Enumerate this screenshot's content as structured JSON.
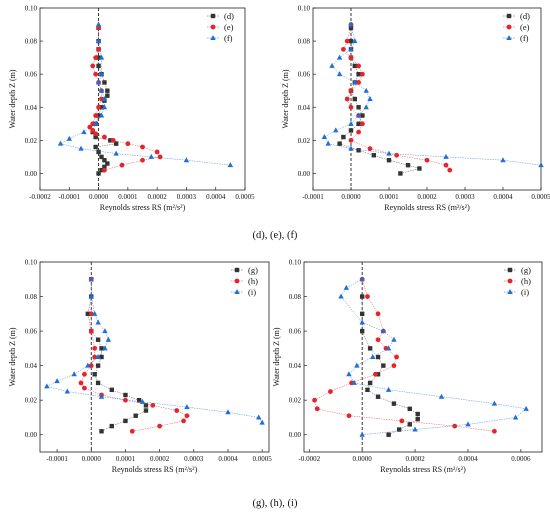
{
  "captions": [
    "(d), (e), (f)",
    "(g), (h), (i)"
  ],
  "series_colors": {
    "square": "#333333",
    "circle": "#e8242b",
    "triangle": "#1f6fd6"
  },
  "chart_data": [
    {
      "type": "scatter",
      "xlabel": "Reynolds stress RS (m²/s²)",
      "ylabel": "Water depth Z (m)",
      "xlim": [
        -0.0002,
        0.0005
      ],
      "ylim": [
        -0.01,
        0.1
      ],
      "xticks": [
        "-0.0002",
        "-0.0001",
        "0.0000",
        "0.0001",
        "0.0002",
        "0.0003",
        "0.0004",
        "0.0005"
      ],
      "yticks": [
        "0.00",
        "0.02",
        "0.04",
        "0.06",
        "0.08",
        "0.10"
      ],
      "legend_position": "top-right",
      "series": [
        {
          "name": "(d)",
          "marker": "square",
          "x": [
            0.0,
            1e-05,
            2e-05,
            3e-05,
            2e-05,
            1e-05,
            0.0,
            -1e-05,
            6e-05,
            4e-05,
            -1e-05,
            -2e-05,
            -1e-05,
            0.0,
            1e-05,
            2e-05,
            3e-05,
            3e-05,
            2e-05,
            1e-05,
            0.0,
            0.0,
            0.0,
            0.0,
            0.0
          ],
          "y": [
            0.0,
            0.002,
            0.004,
            0.006,
            0.008,
            0.01,
            0.013,
            0.016,
            0.018,
            0.02,
            0.022,
            0.025,
            0.03,
            0.035,
            0.04,
            0.044,
            0.047,
            0.05,
            0.055,
            0.06,
            0.065,
            0.07,
            0.075,
            0.08,
            0.088
          ]
        },
        {
          "name": "(e)",
          "marker": "circle",
          "x": [
            2e-05,
            8e-05,
            0.00015,
            0.00021,
            0.0002,
            0.00015,
            0.0001,
            5e-05,
            2e-05,
            -1e-05,
            -2e-05,
            -3e-05,
            -2e-05,
            -1e-05,
            0.0,
            1e-05,
            1e-05,
            0.0,
            -1e-05,
            -2e-05,
            -1e-05,
            0.0,
            0.0
          ],
          "y": [
            0.002,
            0.005,
            0.008,
            0.01,
            0.013,
            0.016,
            0.018,
            0.02,
            0.022,
            0.024,
            0.026,
            0.028,
            0.03,
            0.035,
            0.04,
            0.045,
            0.05,
            0.055,
            0.06,
            0.065,
            0.07,
            0.075,
            0.088
          ]
        },
        {
          "name": "(f)",
          "marker": "triangle",
          "x": [
            0.00045,
            0.0003,
            0.00018,
            6e-05,
            -6e-05,
            -0.00013,
            -0.0001,
            -5e-05,
            -1e-05,
            1e-05,
            2e-05,
            2e-05,
            1e-05,
            0.0,
            1e-05,
            1e-05,
            0.0,
            0.0
          ],
          "y": [
            0.005,
            0.008,
            0.01,
            0.012,
            0.015,
            0.018,
            0.021,
            0.025,
            0.03,
            0.035,
            0.04,
            0.045,
            0.05,
            0.055,
            0.06,
            0.07,
            0.08,
            0.09
          ]
        }
      ]
    },
    {
      "type": "scatter",
      "xlabel": "Reynolds stress RS (m²/s²)",
      "ylabel": "Water depth Z (m)",
      "xlim": [
        -0.0001,
        0.0005
      ],
      "ylim": [
        -0.01,
        0.1
      ],
      "xticks": [
        "-0.0001",
        "0.0000",
        "0.0001",
        "0.0002",
        "0.0003",
        "0.0004",
        "0.0005"
      ],
      "yticks": [
        "0.00",
        "0.02",
        "0.04",
        "0.06",
        "0.08",
        "0.10"
      ],
      "legend_position": "top-right",
      "series": [
        {
          "name": "(d)",
          "marker": "square",
          "x": [
            0.00013,
            0.00018,
            0.00015,
            0.0001,
            6e-05,
            2e-05,
            -3e-05,
            -2e-05,
            0.0,
            2e-05,
            3e-05,
            2e-05,
            1e-05,
            0.0,
            1e-05,
            2e-05,
            1e-05,
            0.0,
            0.0,
            0.0,
            0.0
          ],
          "y": [
            0.0,
            0.003,
            0.005,
            0.008,
            0.011,
            0.014,
            0.018,
            0.022,
            0.026,
            0.03,
            0.035,
            0.04,
            0.045,
            0.05,
            0.055,
            0.06,
            0.065,
            0.07,
            0.075,
            0.08,
            0.088
          ]
        },
        {
          "name": "(e)",
          "marker": "circle",
          "x": [
            0.00026,
            0.00025,
            0.0002,
            0.00012,
            5e-05,
            0.0,
            2e-05,
            3e-05,
            2e-05,
            0.0,
            -1e-05,
            0.0,
            2e-05,
            3e-05,
            2e-05,
            0.0,
            -2e-05,
            -1e-05,
            0.0
          ],
          "y": [
            0.002,
            0.005,
            0.008,
            0.011,
            0.015,
            0.02,
            0.025,
            0.03,
            0.035,
            0.04,
            0.045,
            0.05,
            0.055,
            0.06,
            0.065,
            0.07,
            0.075,
            0.08,
            0.09
          ]
        },
        {
          "name": "(f)",
          "marker": "triangle",
          "x": [
            0.0005,
            0.0004,
            0.00025,
            0.0001,
            0.0,
            -6e-05,
            -7e-05,
            -4e-05,
            0.0,
            2e-05,
            4e-05,
            5e-05,
            4e-05,
            1e-05,
            -3e-05,
            -5e-05,
            -3e-05,
            0.0,
            1e-05,
            0.0
          ],
          "y": [
            0.005,
            0.008,
            0.01,
            0.012,
            0.015,
            0.018,
            0.022,
            0.026,
            0.03,
            0.035,
            0.04,
            0.045,
            0.05,
            0.055,
            0.06,
            0.065,
            0.07,
            0.075,
            0.08,
            0.09
          ]
        }
      ]
    },
    {
      "type": "scatter",
      "xlabel": "Reynolds stress RS (m²/s²)",
      "ylabel": "Water depth Z (m)",
      "xlim": [
        -0.00015,
        0.00052
      ],
      "ylim": [
        -0.01,
        0.1
      ],
      "xticks": [
        "-0.0001",
        "0.0000",
        "0.0001",
        "0.0002",
        "0.0003",
        "0.0004",
        "0.0005"
      ],
      "yticks": [
        "0.00",
        "0.02",
        "0.04",
        "0.06",
        "0.08",
        "0.10"
      ],
      "legend_position": "top-right",
      "series": [
        {
          "name": "(g)",
          "marker": "square",
          "x": [
            3e-05,
            6e-05,
            0.0001,
            0.00013,
            0.00016,
            0.00016,
            0.00014,
            0.0001,
            6e-05,
            2e-05,
            1e-05,
            2e-05,
            3e-05,
            3e-05,
            2e-05,
            0.0,
            -1e-05,
            0.0,
            0.0
          ],
          "y": [
            0.002,
            0.005,
            0.008,
            0.011,
            0.014,
            0.017,
            0.02,
            0.023,
            0.026,
            0.03,
            0.035,
            0.04,
            0.045,
            0.05,
            0.055,
            0.06,
            0.07,
            0.08,
            0.09
          ]
        },
        {
          "name": "(h)",
          "marker": "circle",
          "x": [
            0.00012,
            0.0002,
            0.00027,
            0.00028,
            0.00025,
            0.00018,
            0.0001,
            3e-05,
            -2e-05,
            -3e-05,
            -2e-05,
            0.0,
            1e-05,
            1e-05,
            0.0,
            0.0,
            0.0
          ],
          "y": [
            0.002,
            0.005,
            0.008,
            0.011,
            0.014,
            0.017,
            0.02,
            0.023,
            0.027,
            0.03,
            0.035,
            0.04,
            0.045,
            0.05,
            0.06,
            0.07,
            0.09
          ]
        },
        {
          "name": "(i)",
          "marker": "triangle",
          "x": [
            0.0005,
            0.00049,
            0.0004,
            0.00028,
            0.00015,
            3e-05,
            -7e-05,
            -0.00013,
            -0.0001,
            -5e-05,
            -1e-05,
            2e-05,
            4e-05,
            5e-05,
            4e-05,
            2e-05,
            1e-05,
            0.0,
            0.0
          ],
          "y": [
            0.007,
            0.01,
            0.013,
            0.016,
            0.019,
            0.022,
            0.025,
            0.028,
            0.031,
            0.035,
            0.04,
            0.045,
            0.05,
            0.055,
            0.06,
            0.065,
            0.07,
            0.08,
            0.09
          ]
        }
      ]
    },
    {
      "type": "scatter",
      "xlabel": "Reynolds stress RS (m²/s²)",
      "ylabel": "Water depth Z (m)",
      "xlim": [
        -0.00022,
        0.00068
      ],
      "ylim": [
        -0.01,
        0.1
      ],
      "xticks": [
        "-0.0002",
        "0.0000",
        "0.0002",
        "0.0004",
        "0.0006"
      ],
      "yticks": [
        "0.00",
        "0.02",
        "0.04",
        "0.06",
        "0.08",
        "0.10"
      ],
      "legend_position": "top-right",
      "series": [
        {
          "name": "(g)",
          "marker": "square",
          "x": [
            0.0001,
            0.00014,
            0.00018,
            0.00021,
            0.00021,
            0.00018,
            0.00012,
            6e-05,
            2e-05,
            3e-05,
            6e-05,
            8e-05,
            6e-05,
            3e-05,
            0.0,
            0.0,
            0.0
          ],
          "y": [
            0.0,
            0.003,
            0.006,
            0.009,
            0.012,
            0.015,
            0.018,
            0.022,
            0.026,
            0.03,
            0.035,
            0.04,
            0.045,
            0.05,
            0.06,
            0.07,
            0.08
          ]
        },
        {
          "name": "(h)",
          "marker": "circle",
          "x": [
            0.0005,
            0.00035,
            0.00015,
            -5e-05,
            -0.00017,
            -0.00018,
            -0.00012,
            -4e-05,
            5e-05,
            0.00012,
            0.00013,
            9e-05,
            6e-05,
            8e-05,
            6e-05,
            2e-05,
            0.0
          ],
          "y": [
            0.002,
            0.005,
            0.008,
            0.011,
            0.015,
            0.02,
            0.025,
            0.03,
            0.035,
            0.04,
            0.045,
            0.05,
            0.055,
            0.06,
            0.07,
            0.08,
            0.09
          ]
        },
        {
          "name": "(i)",
          "marker": "triangle",
          "x": [
            0.0,
            0.0002,
            0.0004,
            0.00058,
            0.00062,
            0.0005,
            0.0003,
            0.0001,
            -3e-05,
            -5e-05,
            -2e-05,
            4e-05,
            0.0001,
            0.00012,
            8e-05,
            0.0,
            -8e-05,
            -6e-05,
            0.0
          ],
          "y": [
            0.0,
            0.003,
            0.006,
            0.01,
            0.015,
            0.018,
            0.022,
            0.026,
            0.03,
            0.035,
            0.04,
            0.045,
            0.05,
            0.055,
            0.06,
            0.065,
            0.08,
            0.085,
            0.09
          ]
        }
      ]
    }
  ]
}
